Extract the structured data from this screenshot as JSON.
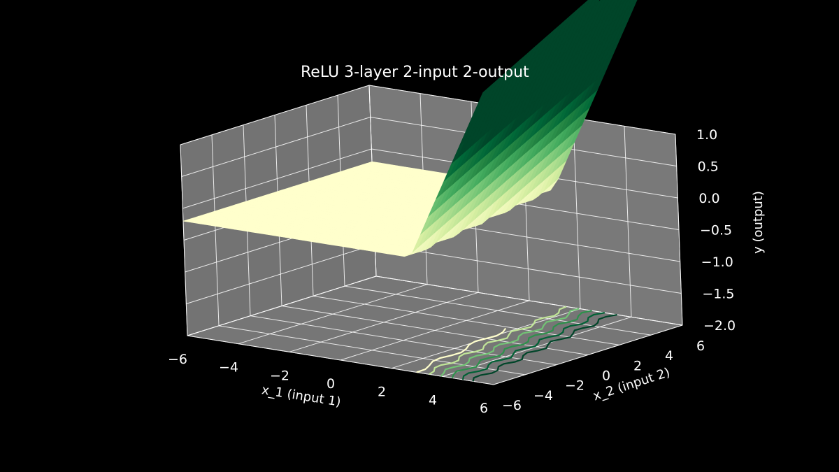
{
  "chart_data": {
    "type": "surface3d",
    "title": "ReLU 3-layer 2-input 2-output",
    "xlabel": "x_1 (input 1)",
    "ylabel": "x_2 (input 2)",
    "zlabel": "y (output)",
    "xlim": [
      -6,
      6
    ],
    "ylim": [
      -6,
      6
    ],
    "zlim": [
      -2,
      1
    ],
    "x_ticks": [
      "−6",
      "−4",
      "−2",
      "0",
      "2",
      "4",
      "6"
    ],
    "y_ticks": [
      "−6",
      "−4",
      "−2",
      "0",
      "2",
      "4",
      "6"
    ],
    "z_ticks": [
      "−2.0",
      "−1.5",
      "−1.0",
      "−0.5",
      "0.0",
      "0.5",
      "1.0"
    ],
    "grid": true,
    "colormap": "YlGn",
    "pane_color": "#808080",
    "background": "#000000",
    "surface": {
      "flat_value": -0.2,
      "ridge_line": "x_1 + 0.15*x_2 = 2",
      "slope": 0.9,
      "note_values": "flat at about -0.2 for x_1 below the ridge, rising steeply beyond"
    },
    "contour_projection": {
      "plane": "z = -2",
      "levels": [
        -0.2,
        0.2,
        0.6,
        1.0,
        1.4,
        1.8
      ]
    }
  }
}
